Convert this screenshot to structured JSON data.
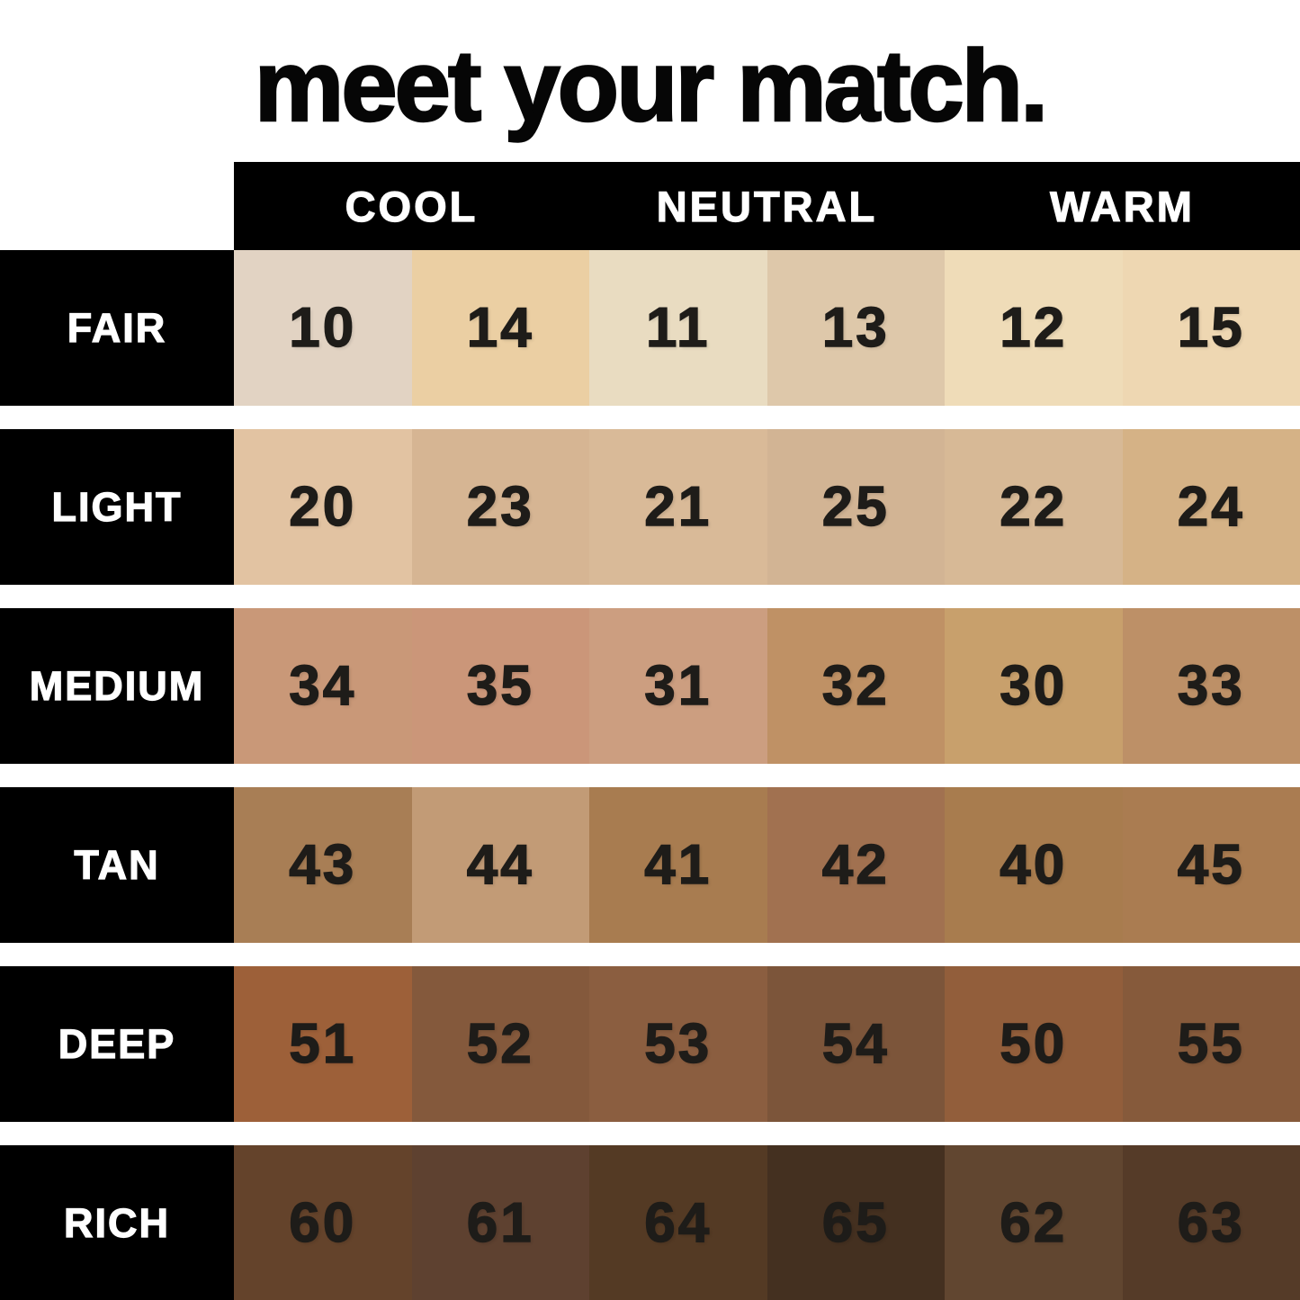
{
  "title": "meet your match.",
  "palette": {
    "page_background": "#ffffff",
    "band_background": "#000000",
    "band_text": "#ffffff",
    "number_text": "#1e1c19"
  },
  "chart_data": {
    "type": "table",
    "title": "meet your match.",
    "column_groups": [
      "COOL",
      "NEUTRAL",
      "WARM"
    ],
    "columns_per_group": 2,
    "row_labels": [
      "FAIR",
      "LIGHT",
      "MEDIUM",
      "TAN",
      "DEEP",
      "RICH"
    ],
    "cells": [
      [
        "10",
        "14",
        "11",
        "13",
        "12",
        "15"
      ],
      [
        "20",
        "23",
        "21",
        "25",
        "22",
        "24"
      ],
      [
        "34",
        "35",
        "31",
        "32",
        "30",
        "33"
      ],
      [
        "43",
        "44",
        "41",
        "42",
        "40",
        "45"
      ],
      [
        "51",
        "52",
        "53",
        "54",
        "50",
        "55"
      ],
      [
        "60",
        "61",
        "64",
        "65",
        "62",
        "63"
      ]
    ],
    "cell_colors": [
      [
        "#e2d3c3",
        "#ebcfa3",
        "#e9dcc1",
        "#dec8aa",
        "#efdcb8",
        "#eed7b2"
      ],
      [
        "#e2c3a2",
        "#d6b593",
        "#d9ba98",
        "#d2b494",
        "#d7b996",
        "#d5b286"
      ],
      [
        "#c99878",
        "#cb9679",
        "#cc9e80",
        "#bf9165",
        "#c8a06c",
        "#bd9067"
      ],
      [
        "#a87e55",
        "#c29b76",
        "#a87c50",
        "#a17150",
        "#a87c4e",
        "#aa7c51"
      ],
      [
        "#9d6039",
        "#84593c",
        "#8b5e40",
        "#7c553a",
        "#925e3b",
        "#865a3b"
      ],
      [
        "#64432b",
        "#5e4130",
        "#543a24",
        "#443020",
        "#614630",
        "#553b28"
      ]
    ],
    "layout_hints": {
      "row_label_position": "left",
      "group_headers_position": "top",
      "grid": "off",
      "legend": "none"
    }
  }
}
